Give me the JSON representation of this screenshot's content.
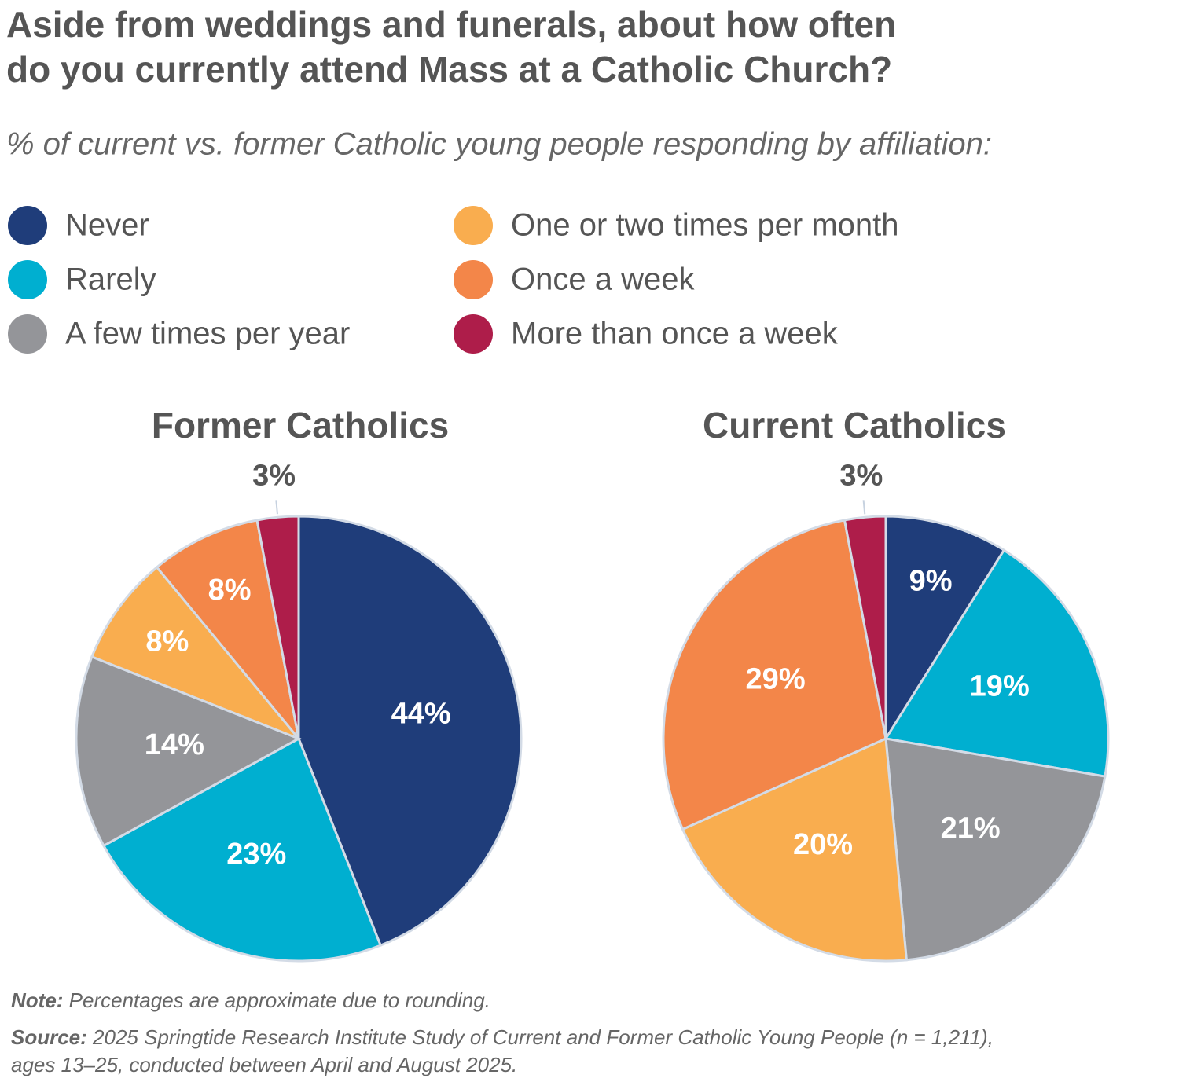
{
  "title": [
    "Aside from weddings and funerals, about how often",
    "do you currently attend Mass at a Catholic Church?"
  ],
  "subtitle": "% of current vs. former Catholic young people responding by affiliation:",
  "legend": [
    {
      "name": "Never",
      "color": "#1f3d7a"
    },
    {
      "name": "Rarely",
      "color": "#00afd0"
    },
    {
      "name": "A few times per year",
      "color": "#949599"
    },
    {
      "name": "One or two times per month",
      "color": "#f9ad4f"
    },
    {
      "name": "Once a week",
      "color": "#f38649"
    },
    {
      "name": "More than once a week",
      "color": "#ae1d4a"
    }
  ],
  "chart_data": [
    {
      "type": "pie",
      "title": "Former Catholics",
      "values": [
        44,
        23,
        14,
        8,
        8,
        3
      ],
      "value_labels": [
        "44%",
        "23%",
        "14%",
        "8%",
        "8%",
        "3%"
      ]
    },
    {
      "type": "pie",
      "title": "Current Catholics",
      "values": [
        9,
        19,
        21,
        20,
        29,
        3
      ],
      "value_labels": [
        "9%",
        "19%",
        "21%",
        "20%",
        "29%",
        "3%"
      ]
    }
  ],
  "note": {
    "label": "Note:",
    "text": "Percentages are approximate due to rounding."
  },
  "source": {
    "label": "Source:",
    "lines": [
      "2025 Springtide Research Institute Study of Current and Former Catholic Young People (n = 1,211),",
      "ages 13–25, conducted between April and August 2025."
    ]
  }
}
